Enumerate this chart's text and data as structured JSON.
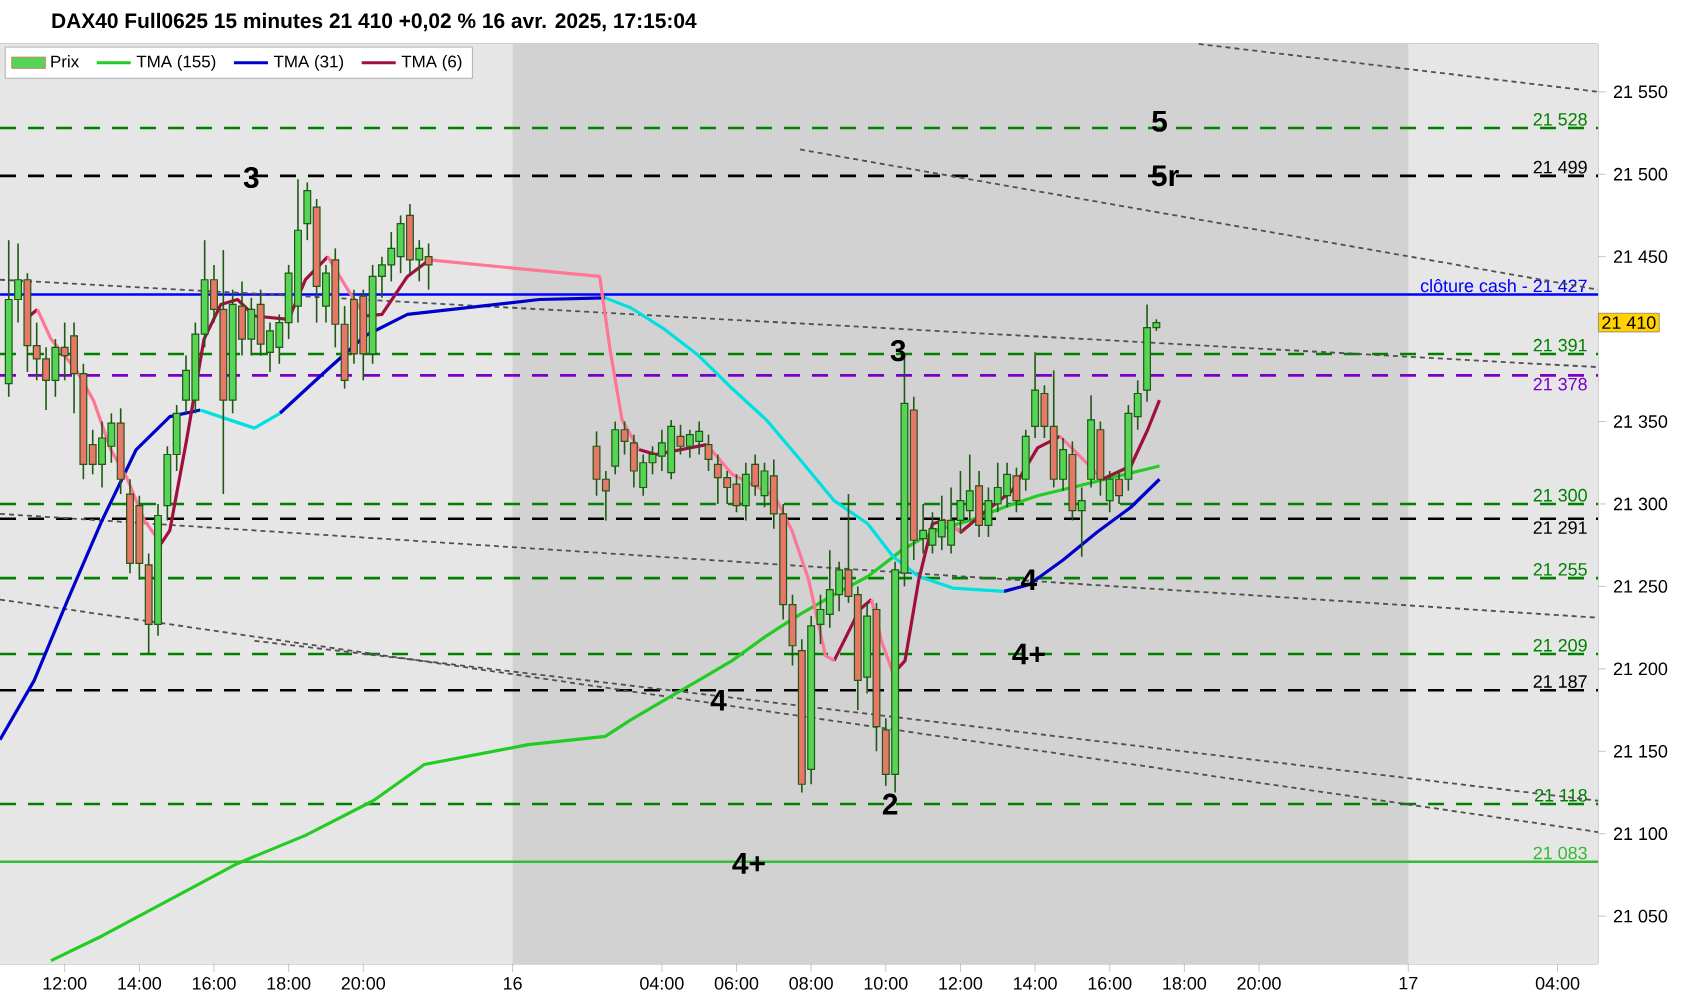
{
  "chart_data": {
    "type": "candlestick",
    "title": "DAX40 Full0625 15 minutes 21 410 +0,02 % 16 avr. 2025, 17:15:04",
    "xlim": [
      "2025-04-15T10:16",
      "2025-04-17T05:05"
    ],
    "ylim": [
      21021,
      21579
    ],
    "xticks": [
      {
        "value": "2025-04-15T12:00",
        "label": "12:00"
      },
      {
        "value": "2025-04-15T14:00",
        "label": "14:00"
      },
      {
        "value": "2025-04-15T16:00",
        "label": "16:00"
      },
      {
        "value": "2025-04-15T18:00",
        "label": "18:00"
      },
      {
        "value": "2025-04-15T20:00",
        "label": "20:00"
      },
      {
        "value": "2025-04-16T00:00",
        "label": "16"
      },
      {
        "value": "2025-04-16T04:00",
        "label": "04:00"
      },
      {
        "value": "2025-04-16T06:00",
        "label": "06:00"
      },
      {
        "value": "2025-04-16T08:00",
        "label": "08:00"
      },
      {
        "value": "2025-04-16T10:00",
        "label": "10:00"
      },
      {
        "value": "2025-04-16T12:00",
        "label": "12:00"
      },
      {
        "value": "2025-04-16T14:00",
        "label": "14:00"
      },
      {
        "value": "2025-04-16T16:00",
        "label": "16:00"
      },
      {
        "value": "2025-04-16T18:00",
        "label": "18:00"
      },
      {
        "value": "2025-04-16T20:00",
        "label": "20:00"
      },
      {
        "value": "2025-04-17T00:00",
        "label": "17"
      },
      {
        "value": "2025-04-17T04:00",
        "label": "04:00"
      }
    ],
    "yticks": [
      {
        "value": 21050,
        "label": "21 050"
      },
      {
        "value": 21100,
        "label": "21 100"
      },
      {
        "value": 21150,
        "label": "21 150"
      },
      {
        "value": 21200,
        "label": "21 200"
      },
      {
        "value": 21250,
        "label": "21 250"
      },
      {
        "value": 21300,
        "label": "21 300"
      },
      {
        "value": 21350,
        "label": "21 350"
      },
      {
        "value": 21450,
        "label": "21 450"
      },
      {
        "value": 21500,
        "label": "21 500"
      },
      {
        "value": 21550,
        "label": "21 550"
      }
    ],
    "legend": "top left",
    "series": [
      {
        "name": "Prix",
        "color": "#55d455",
        "x": [
          "2025-04-15T10:30",
          "2025-04-15T10:45",
          "2025-04-15T11:00",
          "2025-04-15T11:15",
          "2025-04-15T11:30",
          "2025-04-15T11:45",
          "2025-04-15T12:00",
          "2025-04-15T12:15",
          "2025-04-15T12:30",
          "2025-04-15T12:45",
          "2025-04-15T13:00",
          "2025-04-15T13:15",
          "2025-04-15T13:30",
          "2025-04-15T13:45",
          "2025-04-15T14:00",
          "2025-04-15T14:15",
          "2025-04-15T14:30",
          "2025-04-15T14:45",
          "2025-04-15T15:00",
          "2025-04-15T15:15",
          "2025-04-15T15:30",
          "2025-04-15T15:45",
          "2025-04-15T16:00",
          "2025-04-15T16:15",
          "2025-04-15T16:30",
          "2025-04-15T16:45",
          "2025-04-15T17:00",
          "2025-04-15T17:15",
          "2025-04-15T17:30",
          "2025-04-15T17:45",
          "2025-04-15T18:00",
          "2025-04-15T18:15",
          "2025-04-15T18:30",
          "2025-04-15T18:45",
          "2025-04-15T19:00",
          "2025-04-15T19:15",
          "2025-04-15T19:30",
          "2025-04-15T19:45",
          "2025-04-15T20:00",
          "2025-04-15T20:15",
          "2025-04-15T20:30",
          "2025-04-15T20:45",
          "2025-04-15T21:00",
          "2025-04-15T21:15",
          "2025-04-15T21:30",
          "2025-04-15T21:45",
          "2025-04-16T02:15",
          "2025-04-16T02:30",
          "2025-04-16T02:45",
          "2025-04-16T03:00",
          "2025-04-16T03:15",
          "2025-04-16T03:30",
          "2025-04-16T03:45",
          "2025-04-16T04:00",
          "2025-04-16T04:15",
          "2025-04-16T04:30",
          "2025-04-16T04:45",
          "2025-04-16T05:00",
          "2025-04-16T05:15",
          "2025-04-16T05:30",
          "2025-04-16T05:45",
          "2025-04-16T06:00",
          "2025-04-16T06:15",
          "2025-04-16T06:30",
          "2025-04-16T06:45",
          "2025-04-16T07:00",
          "2025-04-16T07:15",
          "2025-04-16T07:30",
          "2025-04-16T07:45",
          "2025-04-16T08:00",
          "2025-04-16T08:15",
          "2025-04-16T08:30",
          "2025-04-16T08:45",
          "2025-04-16T09:00",
          "2025-04-16T09:15",
          "2025-04-16T09:30",
          "2025-04-16T09:45",
          "2025-04-16T10:00",
          "2025-04-16T10:15",
          "2025-04-16T10:30",
          "2025-04-16T10:45",
          "2025-04-16T11:00",
          "2025-04-16T11:15",
          "2025-04-16T11:30",
          "2025-04-16T11:45",
          "2025-04-16T12:00",
          "2025-04-16T12:15",
          "2025-04-16T12:30",
          "2025-04-16T12:45",
          "2025-04-16T13:00",
          "2025-04-16T13:15",
          "2025-04-16T13:30",
          "2025-04-16T13:45",
          "2025-04-16T14:00",
          "2025-04-16T14:15",
          "2025-04-16T14:30",
          "2025-04-16T14:45",
          "2025-04-16T15:00",
          "2025-04-16T15:15",
          "2025-04-16T15:30",
          "2025-04-16T15:45",
          "2025-04-16T16:00",
          "2025-04-16T16:15",
          "2025-04-16T16:30",
          "2025-04-16T16:45",
          "2025-04-16T17:00",
          "2025-04-16T17:15"
        ],
        "ohlc": [
          [
            21373,
            21460,
            21365,
            21424
          ],
          [
            21424,
            21458,
            21410,
            21436
          ],
          [
            21436,
            21440,
            21380,
            21396
          ],
          [
            21396,
            21410,
            21375,
            21388
          ],
          [
            21388,
            21395,
            21357,
            21375
          ],
          [
            21375,
            21400,
            21365,
            21395
          ],
          [
            21395,
            21410,
            21375,
            21390
          ],
          [
            21402,
            21410,
            21355,
            21379
          ],
          [
            21379,
            21385,
            21315,
            21324
          ],
          [
            21336,
            21345,
            21318,
            21324
          ],
          [
            21324,
            21350,
            21310,
            21340
          ],
          [
            21335,
            21355,
            21325,
            21349
          ],
          [
            21349,
            21358,
            21306,
            21315
          ],
          [
            21306,
            21315,
            21258,
            21264
          ],
          [
            21299,
            21305,
            21254,
            21264
          ],
          [
            21263,
            21270,
            21209,
            21227
          ],
          [
            21227,
            21300,
            21220,
            21293
          ],
          [
            21299,
            21335,
            21290,
            21330
          ],
          [
            21330,
            21360,
            21320,
            21355
          ],
          [
            21363,
            21390,
            21355,
            21381
          ],
          [
            21363,
            21410,
            21355,
            21403
          ],
          [
            21403,
            21460,
            21395,
            21436
          ],
          [
            21436,
            21445,
            21410,
            21418
          ],
          [
            21418,
            21454,
            21306,
            21363
          ],
          [
            21363,
            21430,
            21355,
            21421
          ],
          [
            21420,
            21435,
            21390,
            21400
          ],
          [
            21400,
            21425,
            21390,
            21418
          ],
          [
            21421,
            21430,
            21390,
            21397
          ],
          [
            21392,
            21410,
            21380,
            21405
          ],
          [
            21395,
            21415,
            21385,
            21410
          ],
          [
            21410,
            21445,
            21400,
            21440
          ],
          [
            21420,
            21497,
            21410,
            21466
          ],
          [
            21470,
            21495,
            21460,
            21490
          ],
          [
            21480,
            21485,
            21410,
            21432
          ],
          [
            21420,
            21445,
            21410,
            21440
          ],
          [
            21448,
            21455,
            21395,
            21409
          ],
          [
            21409,
            21420,
            21370,
            21375
          ],
          [
            21424,
            21430,
            21385,
            21391
          ],
          [
            21426,
            21430,
            21375,
            21391
          ],
          [
            21391,
            21445,
            21385,
            21438
          ],
          [
            21438,
            21450,
            21425,
            21445
          ],
          [
            21445,
            21465,
            21435,
            21455
          ],
          [
            21450,
            21475,
            21440,
            21470
          ],
          [
            21475,
            21482,
            21440,
            21448
          ],
          [
            21448,
            21460,
            21435,
            21455
          ],
          [
            21450,
            21458,
            21430,
            21445
          ],
          [
            21335,
            21344,
            21305,
            21315
          ],
          [
            21315,
            21320,
            21290,
            21308
          ],
          [
            21323,
            21350,
            21318,
            21345
          ],
          [
            21345,
            21350,
            21330,
            21338
          ],
          [
            21337,
            21342,
            21310,
            21320
          ],
          [
            21310,
            21330,
            21305,
            21325
          ],
          [
            21325,
            21335,
            21318,
            21330
          ],
          [
            21329,
            21345,
            21320,
            21337
          ],
          [
            21319,
            21351,
            21315,
            21347
          ],
          [
            21341,
            21348,
            21330,
            21335
          ],
          [
            21335,
            21345,
            21328,
            21342
          ],
          [
            21338,
            21350,
            21330,
            21344
          ],
          [
            21336,
            21342,
            21320,
            21327
          ],
          [
            21324,
            21330,
            21300,
            21316
          ],
          [
            21316,
            21320,
            21300,
            21310
          ],
          [
            21312,
            21318,
            21295,
            21299
          ],
          [
            21299,
            21325,
            21290,
            21318
          ],
          [
            21324,
            21330,
            21305,
            21311
          ],
          [
            21305,
            21325,
            21298,
            21320
          ],
          [
            21317,
            21327,
            21285,
            21294
          ],
          [
            21294,
            21300,
            21230,
            21239
          ],
          [
            21239,
            21245,
            21202,
            21214
          ],
          [
            21211,
            21218,
            21125,
            21130
          ],
          [
            21139,
            21232,
            21130,
            21226
          ],
          [
            21227,
            21245,
            21215,
            21236
          ],
          [
            21233,
            21272,
            21225,
            21248
          ],
          [
            21245,
            21265,
            21235,
            21260
          ],
          [
            21260,
            21306,
            21240,
            21244
          ],
          [
            21245,
            21250,
            21175,
            21193
          ],
          [
            21195,
            21240,
            21185,
            21232
          ],
          [
            21236,
            21240,
            21150,
            21165
          ],
          [
            21163,
            21170,
            21129,
            21136
          ],
          [
            21136,
            21265,
            21125,
            21260
          ],
          [
            21258,
            21390,
            21250,
            21361
          ],
          [
            21357,
            21365,
            21266,
            21278
          ],
          [
            21279,
            21300,
            21270,
            21284
          ],
          [
            21275,
            21295,
            21270,
            21285
          ],
          [
            21280,
            21305,
            21272,
            21290
          ],
          [
            21275,
            21310,
            21270,
            21290
          ],
          [
            21290,
            21320,
            21282,
            21302
          ],
          [
            21296,
            21330,
            21290,
            21308
          ],
          [
            21311,
            21320,
            21280,
            21287
          ],
          [
            21287,
            21310,
            21280,
            21302
          ],
          [
            21300,
            21325,
            21295,
            21310
          ],
          [
            21305,
            21325,
            21298,
            21318
          ],
          [
            21317,
            21322,
            21295,
            21302
          ],
          [
            21315,
            21345,
            21308,
            21341
          ],
          [
            21347,
            21392,
            21340,
            21369
          ],
          [
            21367,
            21372,
            21340,
            21347
          ],
          [
            21347,
            21381,
            21310,
            21315
          ],
          [
            21315,
            21340,
            21308,
            21333
          ],
          [
            21330,
            21338,
            21290,
            21296
          ],
          [
            21296,
            21310,
            21268,
            21302
          ],
          [
            21315,
            21366,
            21310,
            21351
          ],
          [
            21345,
            21350,
            21305,
            21315
          ],
          [
            21302,
            21320,
            21295,
            21315
          ],
          [
            21315,
            21320,
            21300,
            21305
          ],
          [
            21315,
            21360,
            21308,
            21355
          ],
          [
            21353,
            21375,
            21345,
            21367
          ],
          [
            21369,
            21421,
            21362,
            21407
          ],
          [
            21407,
            21412,
            21405,
            21410
          ]
        ],
        "colors": [
          "#55d455",
          "#55d455",
          "#e8776a",
          "#e8776a",
          "#e8776a",
          "#55d455",
          "#e8776a",
          "#e8776a",
          "#e8776a",
          "#e8776a",
          "#55d455",
          "#55d455",
          "#e8776a",
          "#e8776a",
          "#e8776a",
          "#e8776a",
          "#55d455",
          "#55d455",
          "#55d455",
          "#55d455",
          "#55d455",
          "#55d455",
          "#e8776a",
          "#e8776a",
          "#55d455",
          "#e8776a",
          "#55d455",
          "#e8776a",
          "#55d455",
          "#55d455",
          "#55d455",
          "#55d455",
          "#55d455",
          "#e8776a",
          "#55d455",
          "#e8776a",
          "#e8776a",
          "#e8776a",
          "#e8776a",
          "#55d455",
          "#55d455",
          "#55d455",
          "#55d455",
          "#e8776a",
          "#55d455",
          "#e8776a",
          "#e8776a",
          "#e8776a",
          "#55d455",
          "#e8776a",
          "#e8776a",
          "#55d455",
          "#55d455",
          "#55d455",
          "#55d455",
          "#e8776a",
          "#55d455",
          "#55d455",
          "#e8776a",
          "#e8776a",
          "#e8776a",
          "#e8776a",
          "#55d455",
          "#e8776a",
          "#55d455",
          "#e8776a",
          "#e8776a",
          "#e8776a",
          "#e8776a",
          "#55d455",
          "#55d455",
          "#55d455",
          "#55d455",
          "#e8776a",
          "#e8776a",
          "#55d455",
          "#e8776a",
          "#e8776a",
          "#55d455",
          "#55d455",
          "#e8776a",
          "#55d455",
          "#55d455",
          "#55d455",
          "#55d455",
          "#55d455",
          "#55d455",
          "#e8776a",
          "#55d455",
          "#55d455",
          "#55d455",
          "#e8776a",
          "#55d455",
          "#55d455",
          "#e8776a",
          "#e8776a",
          "#55d455",
          "#e8776a",
          "#55d455",
          "#55d455",
          "#e8776a",
          "#55d455",
          "#e8776a",
          "#55d455",
          "#55d455",
          "#55d455",
          "#55d455"
        ],
        "value_labels": [
          null,
          null,
          null,
          null,
          null,
          null,
          null,
          null,
          null,
          null,
          null,
          null,
          null,
          null,
          null,
          null,
          null,
          null,
          null,
          null,
          null,
          null,
          null,
          null,
          null,
          null,
          null,
          null,
          null,
          null,
          null,
          null,
          null,
          null,
          null,
          null,
          null,
          null,
          null,
          null,
          null,
          null,
          null,
          null,
          null,
          null,
          null,
          null,
          null,
          null,
          null,
          null,
          null,
          null,
          null,
          null,
          null,
          null,
          null,
          null,
          null,
          null,
          null,
          null,
          null,
          null,
          null,
          null,
          null,
          null,
          null,
          null,
          null,
          null,
          null,
          null,
          null,
          null,
          null,
          null,
          null,
          null,
          null,
          null,
          null,
          null,
          null,
          null,
          null,
          null,
          null,
          null,
          null,
          null,
          null,
          null,
          null,
          null,
          null,
          null,
          null,
          null,
          null,
          null,
          null,
          null,
          "21 410"
        ]
      },
      {
        "type": "line",
        "line_style": "dotted",
        "color": "#505050",
        "x": [
          "2025-04-16T18:23",
          "2025-04-17T05:05"
        ],
        "values": [
          21579,
          21550
        ]
      },
      {
        "type": "line",
        "line_style": "dotted",
        "color": "#505050",
        "x": [
          "2025-04-16T07:42",
          "2025-04-17T05:05"
        ],
        "values": [
          21515,
          21430
        ]
      },
      {
        "type": "line",
        "line_style": "dotted",
        "color": "#505050",
        "x": [
          "2025-04-15T10:16",
          "2025-04-17T05:05"
        ],
        "values": [
          21436,
          21383
        ]
      },
      {
        "type": "line",
        "line_style": "dotted",
        "color": "#505050",
        "x": [
          "2025-04-15T10:16",
          "2025-04-17T05:05"
        ],
        "values": [
          21294,
          21231
        ]
      },
      {
        "type": "line",
        "line_style": "dotted",
        "color": "#505050",
        "x": [
          "2025-04-15T10:16",
          "2025-04-17T05:05"
        ],
        "values": [
          21242,
          21101
        ]
      },
      {
        "type": "line",
        "line_style": "dotted",
        "color": "#505050",
        "x": [
          "2025-04-15T17:05",
          "2025-04-17T05:05"
        ],
        "values": [
          21217,
          21120
        ]
      },
      {
        "name": "TMA (155)",
        "type": "line",
        "color": "#22cc22",
        "x": [
          "2025-04-15T11:38",
          "2025-04-15T13:00",
          "2025-04-15T14:49",
          "2025-04-15T16:38",
          "2025-04-15T18:27",
          "2025-04-15T20:16",
          "2025-04-15T21:38",
          "2025-04-16T00:25",
          "2025-04-16T02:29",
          "2025-04-16T03:10",
          "2025-04-16T04:04",
          "2025-04-16T04:59",
          "2025-04-16T05:53",
          "2025-04-16T06:48",
          "2025-04-16T07:42",
          "2025-04-16T08:37",
          "2025-04-16T09:31",
          "2025-04-16T10:26",
          "2025-04-16T11:20",
          "2025-04-16T12:15",
          "2025-04-16T13:10",
          "2025-04-16T14:04",
          "2025-04-16T14:59",
          "2025-04-16T15:53",
          "2025-04-16T17:20"
        ],
        "values": [
          21023,
          21038,
          21060,
          21082,
          21099,
          21120,
          21142,
          21154,
          21159,
          21169,
          21181,
          21193,
          21205,
          21220,
          21233,
          21245,
          21256,
          21272,
          21284,
          21290,
          21298,
          21305,
          21310,
          21315,
          21323
        ]
      },
      {
        "name": "TMA (31)",
        "type": "line",
        "color": "#0000cc",
        "x": [
          "2025-04-15T10:16",
          "2025-04-15T11:11",
          "2025-04-15T12:05",
          "2025-04-15T13:00",
          "2025-04-15T13:55",
          "2025-04-15T14:49",
          "2025-04-15T15:38",
          "2025-04-15T16:25",
          "2025-04-15T17:46",
          "2025-04-15T18:55",
          "2025-04-15T20:03",
          "2025-04-15T21:11",
          "2025-04-16T00:43",
          "2025-04-16T02:29",
          "2025-04-16T03:10",
          "2025-04-16T13:10",
          "2025-04-16T13:50",
          "2025-04-16T14:45",
          "2025-04-16T15:40",
          "2025-04-16T16:34",
          "2025-04-16T17:20"
        ],
        "values": [
          21157,
          21193,
          21242,
          21290,
          21333,
          21353,
          21357,
          null,
          21355,
          21379,
          21402,
          21415,
          21424,
          21425,
          null,
          21247,
          21251,
          21266,
          21283,
          21298,
          21315
        ]
      },
      {
        "type": "line",
        "color": "#00e0e0",
        "x": [
          "2025-04-15T15:38",
          "2025-04-15T16:25",
          "2025-04-15T17:05",
          "2025-04-15T17:46",
          "2025-04-15T18:55",
          "2025-04-16T02:29",
          "2025-04-16T03:10",
          "2025-04-16T04:04",
          "2025-04-16T04:59",
          "2025-04-16T05:53",
          "2025-04-16T06:48",
          "2025-04-16T07:42",
          "2025-04-16T08:37",
          "2025-04-16T09:31",
          "2025-04-16T10:12",
          "2025-04-16T10:53",
          "2025-04-16T11:48",
          "2025-04-16T13:10"
        ],
        "values": [
          21357,
          21351,
          21346,
          21355,
          null,
          21425,
          21419,
          21406,
          21390,
          21370,
          21351,
          21327,
          21302,
          21288,
          21268,
          21256,
          21249,
          21247
        ]
      },
      {
        "name": "TMA (6)",
        "type": "line",
        "color": "#a0103c",
        "x": [
          "2025-04-15T10:57",
          "2025-04-15T11:16",
          "2025-04-15T11:38",
          "2025-04-15T14:35",
          "2025-04-15T14:49",
          "2025-04-15T15:16",
          "2025-04-15T15:44",
          "2025-04-15T16:11",
          "2025-04-15T16:38",
          "2025-04-15T17:05",
          "2025-04-15T18:00",
          "2025-04-15T18:27",
          "2025-04-15T19:03",
          "2025-04-15T19:35",
          "2025-04-15T20:03",
          "2025-04-15T20:30",
          "2025-04-15T21:11",
          "2025-04-15T21:46",
          "2025-04-16T02:20",
          "2025-04-16T03:23",
          "2025-04-16T03:50",
          "2025-04-16T05:12",
          "2025-04-16T05:53",
          "2025-04-16T08:37",
          "2025-04-16T09:18",
          "2025-04-16T09:37",
          "2025-04-16T09:53",
          "2025-04-16T10:12",
          "2025-04-16T10:31",
          "2025-04-16T10:53",
          "2025-04-16T11:15",
          "2025-04-16T11:34",
          "2025-04-16T12:01",
          "2025-04-16T12:42",
          "2025-04-16T13:23",
          "2025-04-16T14:04",
          "2025-04-16T14:40",
          "2025-04-16T15:12",
          "2025-04-16T15:48",
          "2025-04-16T16:34",
          "2025-04-16T17:01",
          "2025-04-16T17:20"
        ],
        "values": [
          21412,
          21418,
          null,
          21276,
          21284,
          21339,
          21400,
          21421,
          21424,
          21414,
          21412,
          21436,
          21450,
          null,
          21414,
          21415,
          21438,
          21448,
          null,
          21333,
          21330,
          21336,
          null,
          21205,
          21236,
          21242,
          null,
          21197,
          21205,
          21254,
          21288,
          21290,
          21283,
          21296,
          21308,
          21334,
          21341,
          null,
          21315,
          21323,
          21345,
          21363
        ]
      },
      {
        "type": "line",
        "color": "#ff7595",
        "x": [
          "2025-04-15T11:16",
          "2025-04-15T11:38",
          "2025-04-15T12:19",
          "2025-04-15T12:46",
          "2025-04-15T13:14",
          "2025-04-15T13:41",
          "2025-04-15T14:08",
          "2025-04-15T14:35",
          "2025-04-15T14:49",
          "2025-04-15T19:03",
          "2025-04-15T19:35",
          "2025-04-15T20:03",
          "2025-04-15T20:30",
          "2025-04-15T21:46",
          "2025-04-16T02:20",
          "2025-04-16T02:37",
          "2025-04-16T02:56",
          "2025-04-16T03:23",
          "2025-04-16T03:50",
          "2025-04-16T05:12",
          "2025-04-16T05:53",
          "2025-04-16T07:01",
          "2025-04-16T07:29",
          "2025-04-16T07:56",
          "2025-04-16T08:23",
          "2025-04-16T08:37",
          "2025-04-16T09:18",
          "2025-04-16T09:37",
          "2025-04-16T09:53",
          "2025-04-16T10:12",
          "2025-04-16T10:31",
          "2025-04-16T11:34",
          "2025-04-16T12:01",
          "2025-04-16T12:42",
          "2025-04-16T14:40",
          "2025-04-16T15:12",
          "2025-04-16T15:48"
        ],
        "values": [
          21418,
          21400,
          21381,
          21363,
          21333,
          21315,
          21290,
          21276,
          null,
          21450,
          21430,
          21414,
          null,
          21448,
          21438,
          21393,
          21351,
          21333,
          null,
          21336,
          21318,
          21305,
          21284,
          21254,
          21208,
          21205,
          null,
          21242,
          21217,
          21197,
          null,
          21290,
          21283,
          null,
          21341,
          21329,
          21315
        ]
      }
    ],
    "ref_lines": [
      {
        "axis": "y",
        "value": 21528,
        "label": "21 528",
        "color": "#008000",
        "line_style": "dashed"
      },
      {
        "axis": "y",
        "value": 21499,
        "label": "21 499",
        "color": "#000000",
        "line_style": "dashed"
      },
      {
        "axis": "y",
        "value": 21427,
        "label": "clôture cash -  21 427",
        "color": "#0000ff",
        "line_style": "solid"
      },
      {
        "axis": "y",
        "value": 21391,
        "label": "21 391",
        "color": "#008000",
        "line_style": "dashed"
      },
      {
        "axis": "y",
        "value": 21378,
        "label": "21 378",
        "color": "#7a00c8",
        "line_style": "dashed"
      },
      {
        "axis": "y",
        "value": 21300,
        "label": "21 300",
        "color": "#008000",
        "line_style": "dashed"
      },
      {
        "axis": "y",
        "value": 21291,
        "label": "21 291",
        "color": "#000000",
        "line_style": "dashed"
      },
      {
        "axis": "y",
        "value": 21255,
        "label": "21 255",
        "color": "#008000",
        "line_style": "dashed"
      },
      {
        "axis": "y",
        "value": 21209,
        "label": "21 209",
        "color": "#008000",
        "line_style": "dashed"
      },
      {
        "axis": "y",
        "value": 21187,
        "label": "21 187",
        "color": "#000000",
        "line_style": "dashed"
      },
      {
        "axis": "y",
        "value": 21118,
        "label": "21 118",
        "color": "#008000",
        "line_style": "dashed"
      },
      {
        "axis": "y",
        "value": 21083,
        "label": "21 083",
        "color": "#33bb33",
        "line_style": "solid"
      }
    ],
    "bands": [
      {
        "axis": "x",
        "from": "2025-04-16T00:00",
        "to": "2025-04-17T00:00",
        "color": "#d2d2d2"
      }
    ],
    "annotations": [
      {
        "text": "3",
        "x": "2025-04-15T17:00",
        "y": 21498
      },
      {
        "text": "5",
        "x": "2025-04-16T17:20",
        "y": 21532
      },
      {
        "text": "5r",
        "x": "2025-04-16T17:29",
        "y": 21499
      },
      {
        "text": "3",
        "x": "2025-04-16T10:20",
        "y": 21393
      },
      {
        "text": "4",
        "x": "2025-04-16T05:31",
        "y": 21181
      },
      {
        "text": "4",
        "x": "2025-04-16T13:50",
        "y": 21254
      },
      {
        "text": "4+",
        "x": "2025-04-16T13:50",
        "y": 21209
      },
      {
        "text": "2",
        "x": "2025-04-16T10:07",
        "y": 21118
      },
      {
        "text": "4+",
        "x": "2025-04-16T06:20",
        "y": 21082
      }
    ]
  }
}
